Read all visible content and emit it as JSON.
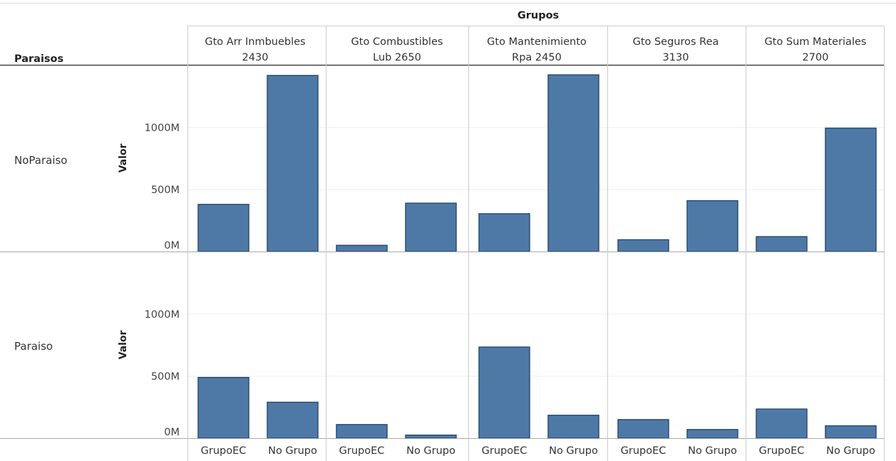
{
  "chart_data": {
    "type": "bar",
    "top_title": "Grupos",
    "row_title": "Paraisos",
    "ylabel": "Valor",
    "ylim": [
      0,
      1450
    ],
    "yticks": [
      {
        "value": 0,
        "label": "0M"
      },
      {
        "value": 500,
        "label": "500M"
      },
      {
        "value": 1000,
        "label": "1000M"
      }
    ],
    "columns": [
      {
        "line1": "Gto Arr Inmbuebles",
        "line2": "2430"
      },
      {
        "line1": "Gto Combustibles",
        "line2": "Lub 2650"
      },
      {
        "line1": "Gto Mantenimiento",
        "line2": "Rpa 2450"
      },
      {
        "line1": "Gto Seguros Rea",
        "line2": "3130"
      },
      {
        "line1": "Gto Sum Materiales",
        "line2": "2700"
      }
    ],
    "categories": [
      "GrupoEC",
      "No Grupo"
    ],
    "color": "#4e79a7",
    "rows": [
      {
        "label": "NoParaiso",
        "values": [
          [
            380,
            1420
          ],
          [
            50,
            390
          ],
          [
            305,
            1425
          ],
          [
            95,
            410
          ],
          [
            120,
            995
          ]
        ]
      },
      {
        "label": "Paraiso",
        "values": [
          [
            490,
            290
          ],
          [
            110,
            25
          ],
          [
            735,
            185
          ],
          [
            150,
            70
          ],
          [
            235,
            100
          ]
        ]
      }
    ]
  }
}
